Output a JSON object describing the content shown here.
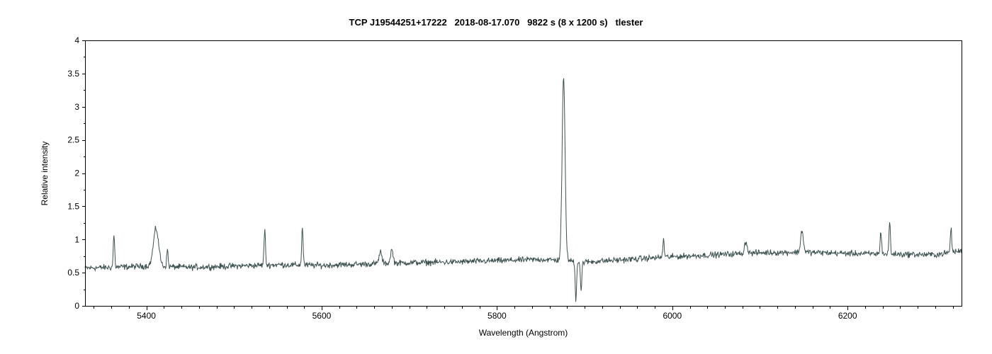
{
  "chart_data": {
    "type": "line",
    "title": "TCP J19544251+17222   2018-08-17.070   9822 s (8 x 1200 s)   tlester",
    "xlabel": "Wavelength (Angstrom)",
    "ylabel": "Relative intensity",
    "xlim": [
      5330,
      6330
    ],
    "ylim": [
      0,
      4
    ],
    "x_major_ticks": [
      5400,
      5600,
      5800,
      6000,
      6200
    ],
    "x_major_tick_labels": [
      "5400",
      "5600",
      "5800",
      "6000",
      "6200"
    ],
    "y_ticks": [
      0,
      0.5,
      1,
      1.5,
      2,
      2.5,
      3,
      3.5,
      4
    ],
    "y_tick_labels": [
      "0",
      "0.5",
      "1",
      "1.5",
      "2",
      "2.5",
      "3",
      "3.5",
      "4"
    ],
    "grid": false,
    "legend": "none",
    "line_color": "#3d5250",
    "series": [
      {
        "continuum": {
          "x": [
            5330,
            5360,
            5400,
            5450,
            5500,
            5550,
            5600,
            5650,
            5700,
            5750,
            5800,
            5850,
            5880,
            5900,
            5950,
            6000,
            6050,
            6100,
            6150,
            6200,
            6250,
            6300,
            6330
          ],
          "y": [
            0.57,
            0.58,
            0.6,
            0.58,
            0.6,
            0.62,
            0.61,
            0.63,
            0.65,
            0.66,
            0.68,
            0.7,
            0.68,
            0.66,
            0.7,
            0.74,
            0.77,
            0.8,
            0.81,
            0.79,
            0.78,
            0.77,
            0.83
          ]
        },
        "features": [
          {
            "x": 5363,
            "y": 1.07
          },
          {
            "x": 5411,
            "y": 1.16
          },
          {
            "x": 5424,
            "y": 0.85
          },
          {
            "x": 5535,
            "y": 1.15
          },
          {
            "x": 5578,
            "y": 1.2
          },
          {
            "x": 5667,
            "y": 0.82
          },
          {
            "x": 5680,
            "y": 0.84
          },
          {
            "x": 5876,
            "y": 3.43
          },
          {
            "x": 5890,
            "y": 0.1
          },
          {
            "x": 5896,
            "y": 0.23
          },
          {
            "x": 5990,
            "y": 1.0
          },
          {
            "x": 6084,
            "y": 0.97
          },
          {
            "x": 6148,
            "y": 1.14
          },
          {
            "x": 6238,
            "y": 1.13
          },
          {
            "x": 6248,
            "y": 1.26
          },
          {
            "x": 6318,
            "y": 1.16
          }
        ]
      }
    ]
  }
}
